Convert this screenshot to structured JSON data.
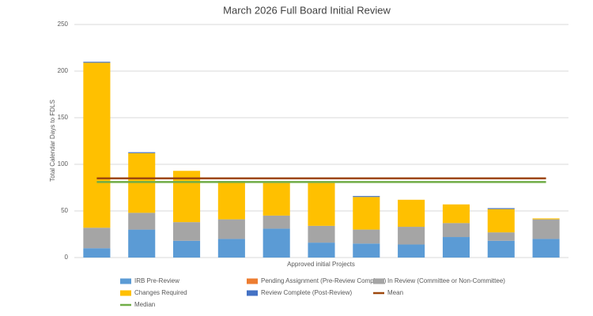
{
  "chart_data": {
    "type": "stacked-bar",
    "title": "March 2026 Full Board Initial Review",
    "x_label": "Approved initial Projects",
    "y_label": "Total Calendar Days to FDLS",
    "categories": [
      null,
      null,
      null,
      null,
      null,
      null,
      null,
      null,
      null,
      null,
      null
    ],
    "ylim": [
      0,
      250
    ],
    "yticks": [
      0,
      50,
      100,
      150,
      200,
      250
    ],
    "grid": true,
    "legend": "bottom",
    "series": [
      {
        "name": "IRB Pre-Review",
        "color": "#5b9bd5",
        "values": [
          10,
          30,
          18,
          20,
          31,
          16,
          15,
          14,
          22,
          18,
          20
        ]
      },
      {
        "name": "Pending Assignment (Pre-Review Complete)",
        "color": "#ed7d31",
        "values": [
          0,
          0,
          0,
          0,
          0,
          0,
          0,
          0,
          0,
          0,
          0
        ]
      },
      {
        "name": "In Review (Committee or Non-Committee)",
        "color": "#a5a5a5",
        "values": [
          22,
          18,
          20,
          21,
          14,
          18,
          15,
          19,
          15,
          9,
          21
        ]
      },
      {
        "name": "Changes Required",
        "color": "#ffc000",
        "values": [
          177,
          64,
          55,
          40,
          35,
          46,
          35,
          29,
          20,
          25,
          1
        ]
      },
      {
        "name": "Review Complete (Post-Review)",
        "color": "#4472c4",
        "values": [
          1,
          1,
          0,
          1,
          0,
          0,
          1,
          0,
          0,
          1,
          0
        ]
      },
      {
        "name": "Mean",
        "color": "#9e480e",
        "type": "line",
        "values": [
          85,
          85,
          85,
          85,
          85,
          85,
          85,
          85,
          85,
          85,
          85
        ]
      },
      {
        "name": "Median",
        "color": "#70ad47",
        "type": "line",
        "values": [
          81,
          81,
          81,
          81,
          81,
          81,
          81,
          81,
          81,
          81,
          81
        ]
      }
    ]
  }
}
